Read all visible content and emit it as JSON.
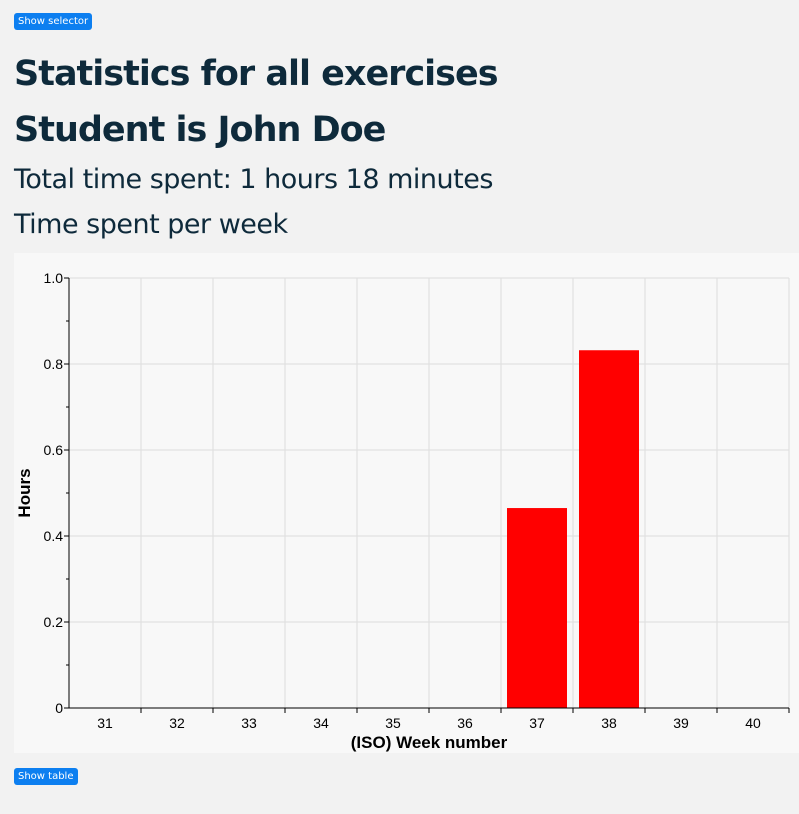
{
  "buttons": {
    "show_selector": "Show selector",
    "show_table": "Show table"
  },
  "header": {
    "title": "Statistics for all exercises",
    "student": "Student is John Doe",
    "total_time": "Total time spent: 1 hours 18 minutes",
    "per_week_heading": "Time spent per week"
  },
  "colors": {
    "bar": "#ff0000",
    "grid": "#dddddd",
    "button": "#0d7ff0",
    "heading": "#0e2a3b"
  },
  "chart_data": {
    "type": "bar",
    "categories": [
      "31",
      "32",
      "33",
      "34",
      "35",
      "36",
      "37",
      "38",
      "39",
      "40"
    ],
    "values": [
      0,
      0,
      0,
      0,
      0,
      0,
      0.465,
      0.832,
      0,
      0
    ],
    "xlabel": "(ISO) Week number",
    "ylabel": "Hours",
    "ylim": [
      0,
      1.0
    ],
    "yticks": [
      "0",
      "0.2",
      "0.4",
      "0.6",
      "0.8",
      "1.0"
    ],
    "ytick_values": [
      0,
      0.2,
      0.4,
      0.6,
      0.8,
      1.0
    ],
    "grid": true
  }
}
